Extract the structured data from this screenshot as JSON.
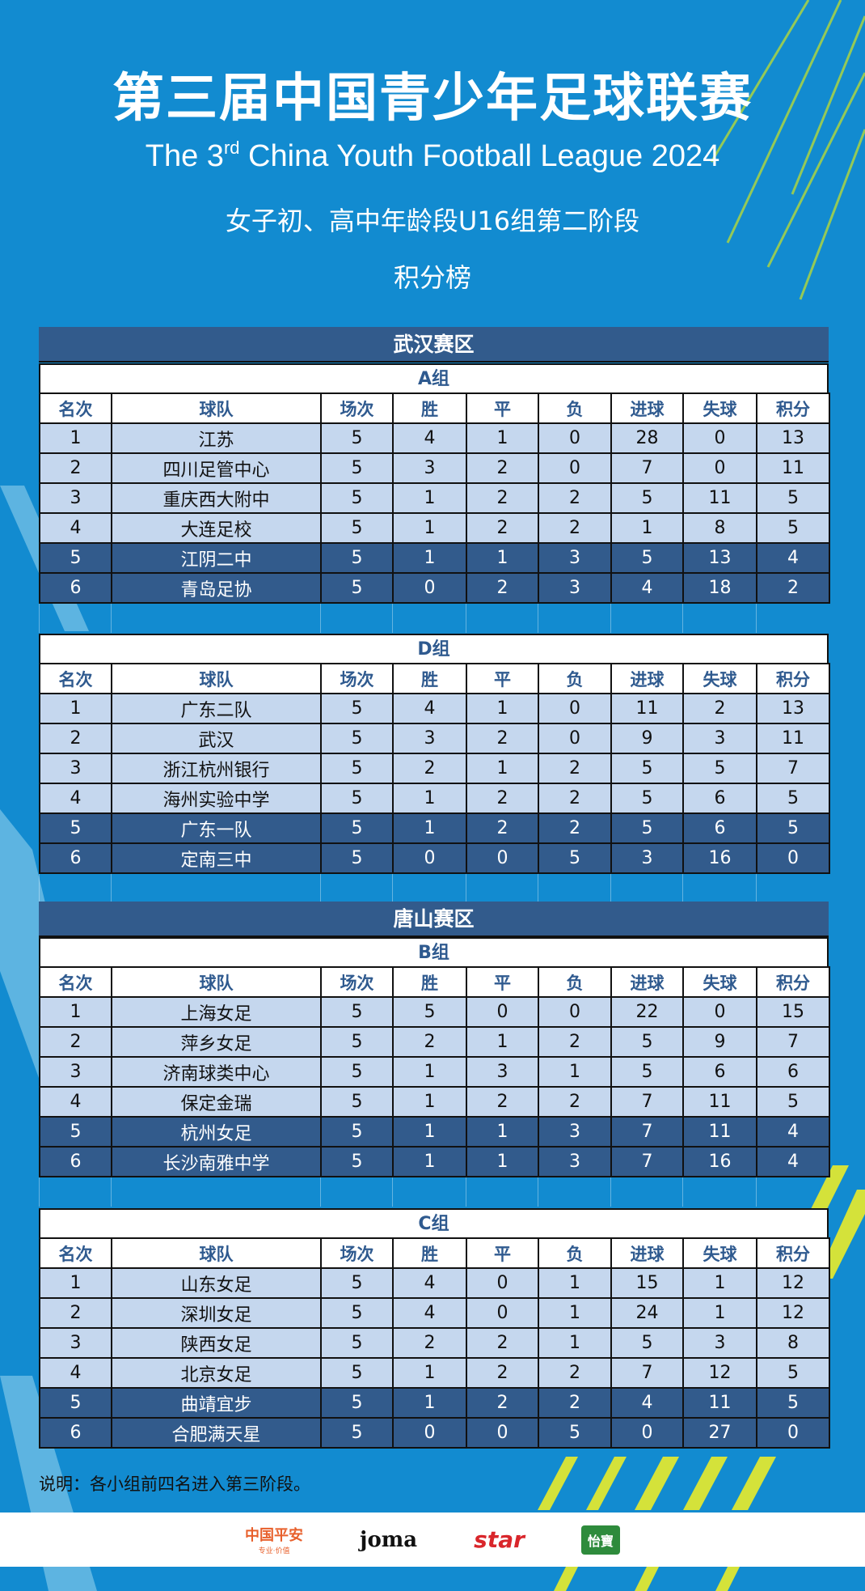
{
  "header": {
    "title_cn": "第三届中国青少年足球联赛",
    "title_en_pre": "The 3",
    "title_en_sup": "rd",
    "title_en_post": " China Youth Football League 2024",
    "subtitle": "女子初、高中年龄段U16组第二阶段",
    "board": "积分榜"
  },
  "columns": [
    "名次",
    "球队",
    "场次",
    "胜",
    "平",
    "负",
    "进球",
    "失球",
    "积分"
  ],
  "colors": {
    "background": "#128bd0",
    "dark_row": "#325b8c",
    "light_row": "#c5d7ee",
    "header_text": "#2f5a8f",
    "stripe": "#c8e03a"
  },
  "regions": [
    {
      "name": "武汉赛区",
      "groups": [
        {
          "name": "A组",
          "rows": [
            [
              "1",
              "江苏",
              "5",
              "4",
              "1",
              "0",
              "28",
              "0",
              "13"
            ],
            [
              "2",
              "四川足管中心",
              "5",
              "3",
              "2",
              "0",
              "7",
              "0",
              "11"
            ],
            [
              "3",
              "重庆西大附中",
              "5",
              "1",
              "2",
              "2",
              "5",
              "11",
              "5"
            ],
            [
              "4",
              "大连足校",
              "5",
              "1",
              "2",
              "2",
              "1",
              "8",
              "5"
            ],
            [
              "5",
              "江阴二中",
              "5",
              "1",
              "1",
              "3",
              "5",
              "13",
              "4"
            ],
            [
              "6",
              "青岛足协",
              "5",
              "0",
              "2",
              "3",
              "4",
              "18",
              "2"
            ]
          ]
        },
        {
          "name": "D组",
          "rows": [
            [
              "1",
              "广东二队",
              "5",
              "4",
              "1",
              "0",
              "11",
              "2",
              "13"
            ],
            [
              "2",
              "武汉",
              "5",
              "3",
              "2",
              "0",
              "9",
              "3",
              "11"
            ],
            [
              "3",
              "浙江杭州银行",
              "5",
              "2",
              "1",
              "2",
              "5",
              "5",
              "7"
            ],
            [
              "4",
              "海州实验中学",
              "5",
              "1",
              "2",
              "2",
              "5",
              "6",
              "5"
            ],
            [
              "5",
              "广东一队",
              "5",
              "1",
              "2",
              "2",
              "5",
              "6",
              "5"
            ],
            [
              "6",
              "定南三中",
              "5",
              "0",
              "0",
              "5",
              "3",
              "16",
              "0"
            ]
          ]
        }
      ]
    },
    {
      "name": "唐山赛区",
      "groups": [
        {
          "name": "B组",
          "rows": [
            [
              "1",
              "上海女足",
              "5",
              "5",
              "0",
              "0",
              "22",
              "0",
              "15"
            ],
            [
              "2",
              "萍乡女足",
              "5",
              "2",
              "1",
              "2",
              "5",
              "9",
              "7"
            ],
            [
              "3",
              "济南球类中心",
              "5",
              "1",
              "3",
              "1",
              "5",
              "6",
              "6"
            ],
            [
              "4",
              "保定金瑞",
              "5",
              "1",
              "2",
              "2",
              "7",
              "11",
              "5"
            ],
            [
              "5",
              "杭州女足",
              "5",
              "1",
              "1",
              "3",
              "7",
              "11",
              "4"
            ],
            [
              "6",
              "长沙南雅中学",
              "5",
              "1",
              "1",
              "3",
              "7",
              "16",
              "4"
            ]
          ]
        },
        {
          "name": "C组",
          "rows": [
            [
              "1",
              "山东女足",
              "5",
              "4",
              "0",
              "1",
              "15",
              "1",
              "12"
            ],
            [
              "2",
              "深圳女足",
              "5",
              "4",
              "0",
              "1",
              "24",
              "1",
              "12"
            ],
            [
              "3",
              "陕西女足",
              "5",
              "2",
              "2",
              "1",
              "5",
              "3",
              "8"
            ],
            [
              "4",
              "北京女足",
              "5",
              "1",
              "2",
              "2",
              "7",
              "12",
              "5"
            ],
            [
              "5",
              "曲靖宜步",
              "5",
              "1",
              "2",
              "2",
              "4",
              "11",
              "5"
            ],
            [
              "6",
              "合肥满天星",
              "5",
              "0",
              "0",
              "5",
              "0",
              "27",
              "0"
            ]
          ]
        }
      ]
    }
  ],
  "note": "说明：各小组前四名进入第三阶段。",
  "sponsors": [
    {
      "name": "中国平安",
      "tagline": "专业·价值",
      "color": "#e8602c"
    },
    {
      "name": "Joma",
      "color": "#111111"
    },
    {
      "name": "star",
      "color": "#d9262b"
    },
    {
      "name": "怡寶",
      "color": "#2e8b3c"
    }
  ]
}
